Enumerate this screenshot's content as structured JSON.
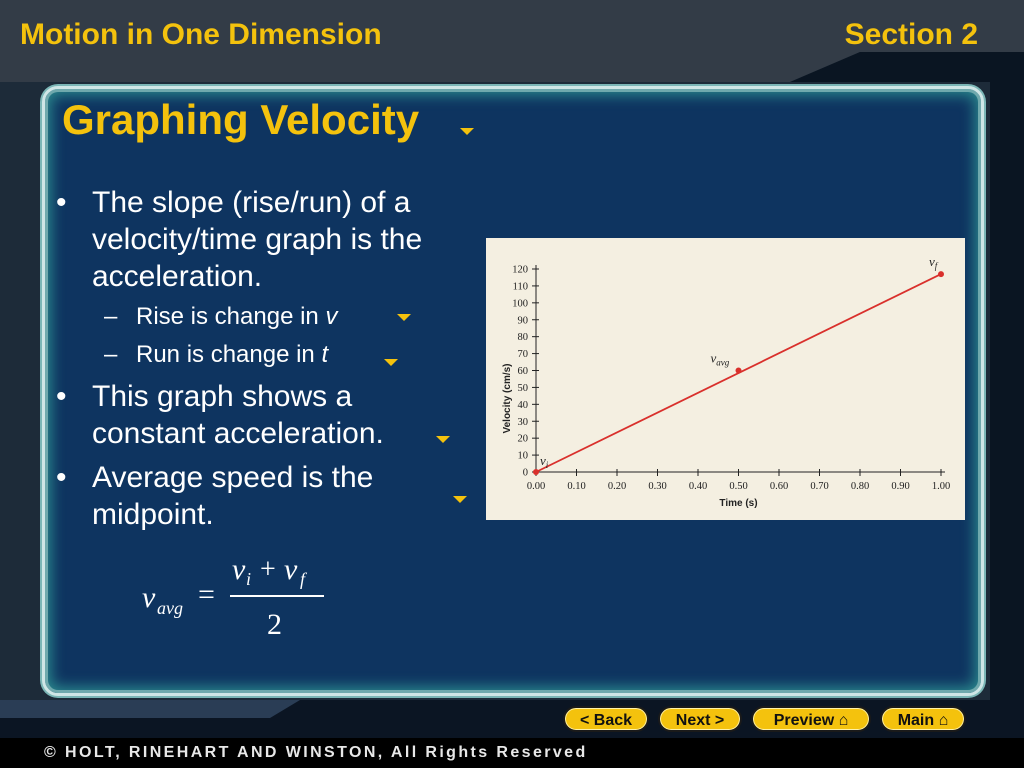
{
  "header": {
    "title": "Motion in One Dimension",
    "section": "Section 2"
  },
  "slide": {
    "title": "Graphing Velocity",
    "bullets": [
      {
        "text": "The slope (rise/run) of a velocity/time graph is the acceleration."
      },
      {
        "text": "This graph shows a constant acceleration."
      },
      {
        "text": "Average speed is the midpoint."
      }
    ],
    "sub_bullets": [
      {
        "prefix": "Rise is change in",
        "var": "v"
      },
      {
        "prefix": "Run is change in",
        "var": "t"
      }
    ],
    "formula": {
      "lhs": "v",
      "lhs_sub": "avg",
      "num_a": "v",
      "num_a_sub": "i",
      "plus": "+",
      "num_b": "v",
      "num_b_sub": "f",
      "eq": "=",
      "den": "2"
    }
  },
  "chart_data": {
    "type": "line",
    "xlabel": "Time (s)",
    "ylabel": "Velocity (cm/s)",
    "xlim": [
      0,
      1.0
    ],
    "ylim": [
      0,
      120
    ],
    "x_ticks": [
      "0.00",
      "0.10",
      "0.20",
      "0.30",
      "0.40",
      "0.50",
      "0.60",
      "0.70",
      "0.80",
      "0.90",
      "1.00"
    ],
    "y_ticks": [
      "0",
      "10",
      "20",
      "30",
      "40",
      "50",
      "60",
      "70",
      "80",
      "90",
      "100",
      "110",
      "120"
    ],
    "series": [
      {
        "x": [
          0.0,
          1.0
        ],
        "y": [
          0,
          117
        ],
        "color": "#d9302c"
      }
    ],
    "points": [
      {
        "x": 0.0,
        "y": 0,
        "label": "v",
        "sub": "i"
      },
      {
        "x": 0.5,
        "y": 60,
        "label": "v",
        "sub": "avg"
      },
      {
        "x": 1.0,
        "y": 117,
        "label": "v",
        "sub": "f"
      }
    ]
  },
  "nav": {
    "back": "< Back",
    "next": "Next >",
    "preview": "Preview",
    "main": "Main"
  },
  "footer": {
    "copyright": "© HOLT, RINEHART AND WINSTON, All Rights Reserved"
  },
  "colors": {
    "accent": "#f4c20d",
    "panel": "#0e3460",
    "line": "#d9302c"
  }
}
